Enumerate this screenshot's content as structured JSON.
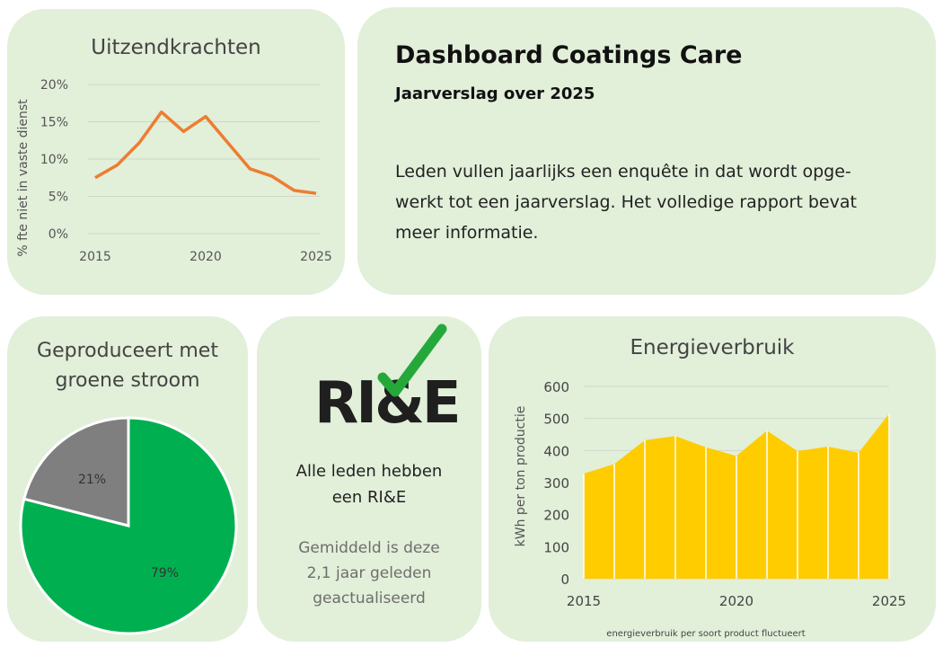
{
  "uitzend": {
    "title": "Uitzendkrachten",
    "chart_data": {
      "type": "line",
      "title": "Uitzendkrachten",
      "ylabel": "% fte niet in vaste dienst",
      "x": [
        2015,
        2016,
        2017,
        2018,
        2019,
        2020,
        2021,
        2022,
        2023,
        2024,
        2025
      ],
      "values": [
        0.075,
        0.092,
        0.122,
        0.163,
        0.137,
        0.157,
        0.122,
        0.087,
        0.077,
        0.058,
        0.054
      ],
      "ylim": [
        0,
        0.2
      ],
      "yticks": [
        "0%",
        "5%",
        "10%",
        "15%",
        "20%"
      ],
      "xticks": [
        "2015",
        "2020",
        "2025"
      ],
      "grid": true,
      "color": "#ed7d31"
    }
  },
  "header": {
    "title": "Dashboard Coatings Care",
    "subtitle": "Jaarverslag over 2025",
    "intro_lines": [
      "Leden vullen jaarlijks een enquête in dat wordt opge-",
      "werkt tot een jaarverslag. Het volledige rapport bevat",
      "meer informatie."
    ]
  },
  "groen": {
    "title_line1": "Geproduceert met",
    "title_line2": "groene stroom",
    "chart_data": {
      "type": "pie",
      "slices": [
        {
          "label": "79%",
          "value": 79,
          "color": "#00b050"
        },
        {
          "label": "21%",
          "value": 21,
          "color": "#7f7f7f"
        }
      ]
    }
  },
  "rie": {
    "logo_text": "RI&E",
    "logo_icon": "checkmark-icon",
    "main_line1": "Alle leden hebben",
    "main_line2": "een RI&E",
    "sub_line1": "Gemiddeld is deze",
    "sub_line2": "2,1 jaar geleden",
    "sub_line3": "geactualiseerd"
  },
  "energie": {
    "title": "Energieverbruik",
    "footnote": "energieverbruik per soort product fluctueert",
    "chart_data": {
      "type": "area",
      "title": "Energieverbruik",
      "ylabel": "kWh per ton productie",
      "x": [
        2015,
        2016,
        2017,
        2018,
        2019,
        2020,
        2021,
        2022,
        2023,
        2024,
        2025
      ],
      "values": [
        328,
        358,
        432,
        445,
        410,
        383,
        462,
        398,
        412,
        393,
        515
      ],
      "ylim": [
        0,
        600
      ],
      "yticks": [
        "0",
        "100",
        "200",
        "300",
        "400",
        "500",
        "600"
      ],
      "xticks": [
        "2015",
        "2020",
        "2025"
      ],
      "grid": true,
      "color": "#ffcc00"
    }
  }
}
